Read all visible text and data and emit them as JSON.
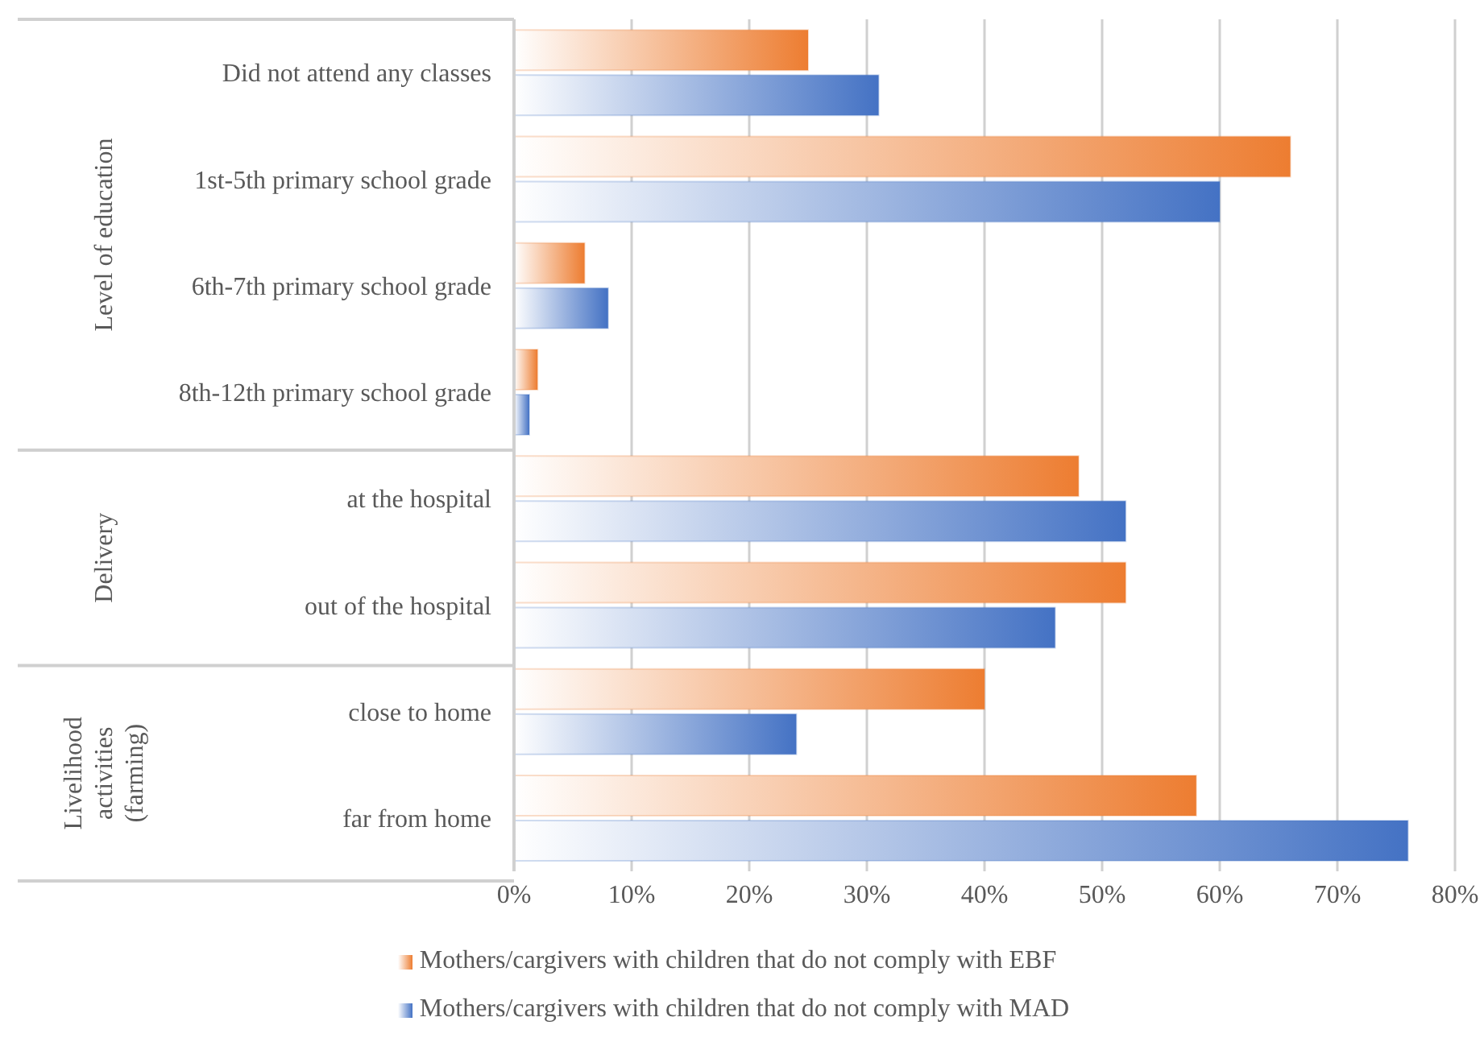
{
  "chart_data": {
    "type": "bar",
    "orientation": "horizontal",
    "categories": [
      "Did not attend any classes",
      "1st-5th primary school grade",
      "6th-7th primary school grade",
      "8th-12th primary school grade",
      "at the hospital",
      "out of the hospital",
      "close to home",
      "far from home"
    ],
    "series": [
      {
        "name": "Mothers/cargivers with children that do not comply with EBF",
        "color": "#ed7d31",
        "values": [
          25,
          66,
          6,
          2,
          48,
          52,
          40,
          58
        ]
      },
      {
        "name": "Mothers/cargivers with children that do not comply with MAD",
        "color": "#4472c4",
        "values": [
          31,
          60,
          8,
          1.3,
          52,
          46,
          24,
          76
        ]
      }
    ],
    "xlim": [
      0,
      80
    ],
    "xticks": [
      {
        "value": 0,
        "label": "0%"
      },
      {
        "value": 10,
        "label": "10%"
      },
      {
        "value": 20,
        "label": "20%"
      },
      {
        "value": 30,
        "label": "30%"
      },
      {
        "value": 40,
        "label": "40%"
      },
      {
        "value": 50,
        "label": "50%"
      },
      {
        "value": 60,
        "label": "60%"
      },
      {
        "value": 70,
        "label": "70%"
      },
      {
        "value": 80,
        "label": "80%"
      }
    ],
    "grid": "x",
    "legend": "bottom",
    "annotations": [
      "Level of education",
      "Delivery",
      "Livelihood activities (farming)"
    ]
  }
}
